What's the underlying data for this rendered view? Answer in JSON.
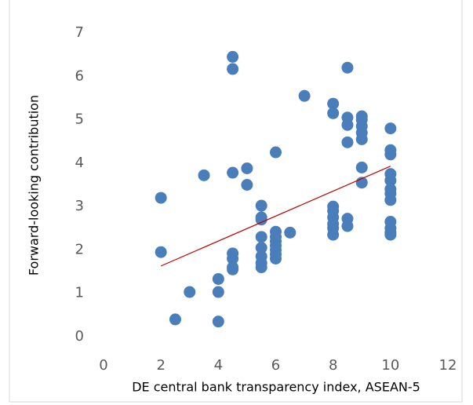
{
  "chart_data": {
    "type": "scatter",
    "xlabel": "DE central bank transparency index, ASEAN-5",
    "ylabel": "Forward-looking  contribution",
    "color": "#4a7ebb",
    "x": [
      2,
      2,
      2.5,
      3,
      3.5,
      4,
      4,
      4,
      4.5,
      4.5,
      4.5,
      4.5,
      4.5,
      4.5,
      4.5,
      5,
      5,
      5.5,
      5.5,
      5.5,
      5.5,
      5.5,
      5.5,
      5.5,
      5.5,
      6,
      6,
      6,
      6,
      6,
      6,
      6,
      6,
      6.5,
      7,
      8,
      8,
      8,
      8,
      8,
      8,
      8,
      8,
      8.5,
      8.5,
      8.5,
      8.5,
      8.5,
      8.5,
      9,
      9,
      9,
      9,
      9,
      9,
      9,
      10,
      10,
      10,
      10,
      10,
      10,
      10,
      10,
      10,
      10,
      10,
      10
    ],
    "y": [
      3.2,
      1.95,
      0.4,
      1.03,
      3.72,
      1.33,
      1.03,
      0.35,
      6.45,
      6.17,
      3.78,
      1.92,
      1.8,
      1.6,
      1.55,
      3.88,
      3.5,
      3.02,
      2.75,
      2.7,
      2.3,
      2.05,
      1.85,
      1.7,
      1.6,
      4.25,
      2.42,
      2.3,
      2.2,
      2.1,
      2.0,
      1.9,
      1.8,
      2.4,
      5.55,
      5.37,
      5.15,
      3.0,
      2.9,
      2.75,
      2.6,
      2.5,
      2.35,
      6.2,
      5.05,
      4.88,
      4.48,
      2.72,
      2.55,
      5.08,
      5.0,
      4.85,
      4.7,
      4.55,
      3.9,
      3.55,
      4.8,
      4.3,
      4.2,
      3.75,
      3.6,
      3.4,
      3.3,
      3.15,
      2.65,
      2.5,
      2.4,
      2.35
    ],
    "trendline": {
      "x": [
        2,
        10
      ],
      "y": [
        1.63,
        3.93
      ],
      "color": "#c00000"
    },
    "xlim": [
      0,
      12
    ],
    "xticks": [
      0,
      2,
      4,
      6,
      8,
      10,
      12
    ],
    "ylim": [
      0,
      7
    ],
    "yticks": [
      0,
      1,
      2,
      3,
      4,
      5,
      6,
      7
    ],
    "grid": false
  }
}
